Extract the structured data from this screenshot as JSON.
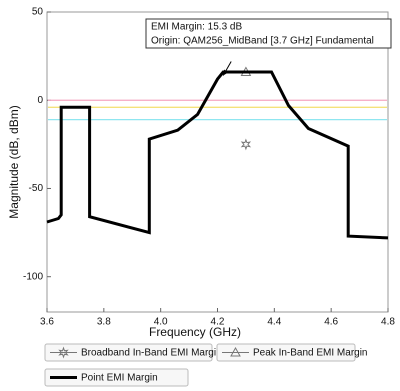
{
  "chart_data": {
    "type": "line",
    "xlabel": "Frequency (GHz)",
    "ylabel": "Magnitude (dB, dBm)",
    "xlim": [
      3.6,
      4.8
    ],
    "ylim": [
      -120,
      50
    ],
    "xticks": [
      3.6,
      3.8,
      {
        "value": 4,
        "label": "4.0"
      },
      4.2,
      4.4,
      4.6,
      4.8
    ],
    "yticks": [
      50,
      0,
      -50,
      -100
    ],
    "grid": false,
    "reference_lines": [
      {
        "value": 0,
        "color": "#f4a6c0"
      },
      {
        "value": -4,
        "color": "#f5e27a"
      },
      {
        "value": -11,
        "color": "#8fe6f0"
      }
    ],
    "annotation": {
      "lines": [
        "EMI Margin: 15.3 dB",
        "Origin: QAM256_MidBand [3.7 GHz] Fundamental"
      ],
      "x": 4.22,
      "y": 14
    },
    "series": [
      {
        "name": "Broadband In-Band EMI Margin",
        "color": "#777777",
        "marker": "star",
        "x": [
          4.3
        ],
        "values": [
          -25
        ]
      },
      {
        "name": "Peak In-Band EMI Margin",
        "color": "#777777",
        "marker": "triangle",
        "x": [
          4.3
        ],
        "values": [
          16
        ]
      },
      {
        "name": "Point EMI Margin",
        "color": "#000000",
        "marker": "none",
        "x": [
          3.6,
          3.64,
          3.65,
          3.65,
          3.75,
          3.75,
          3.96,
          3.96,
          4.06,
          4.13,
          4.2,
          4.22,
          4.39,
          4.45,
          4.52,
          4.66,
          4.66,
          4.8
        ],
        "values": [
          -69,
          -67,
          -65,
          -4,
          -4,
          -66,
          -75,
          -22,
          -17,
          -8,
          12,
          16,
          16,
          -3,
          -16,
          -26,
          -77,
          -78
        ]
      }
    ]
  }
}
